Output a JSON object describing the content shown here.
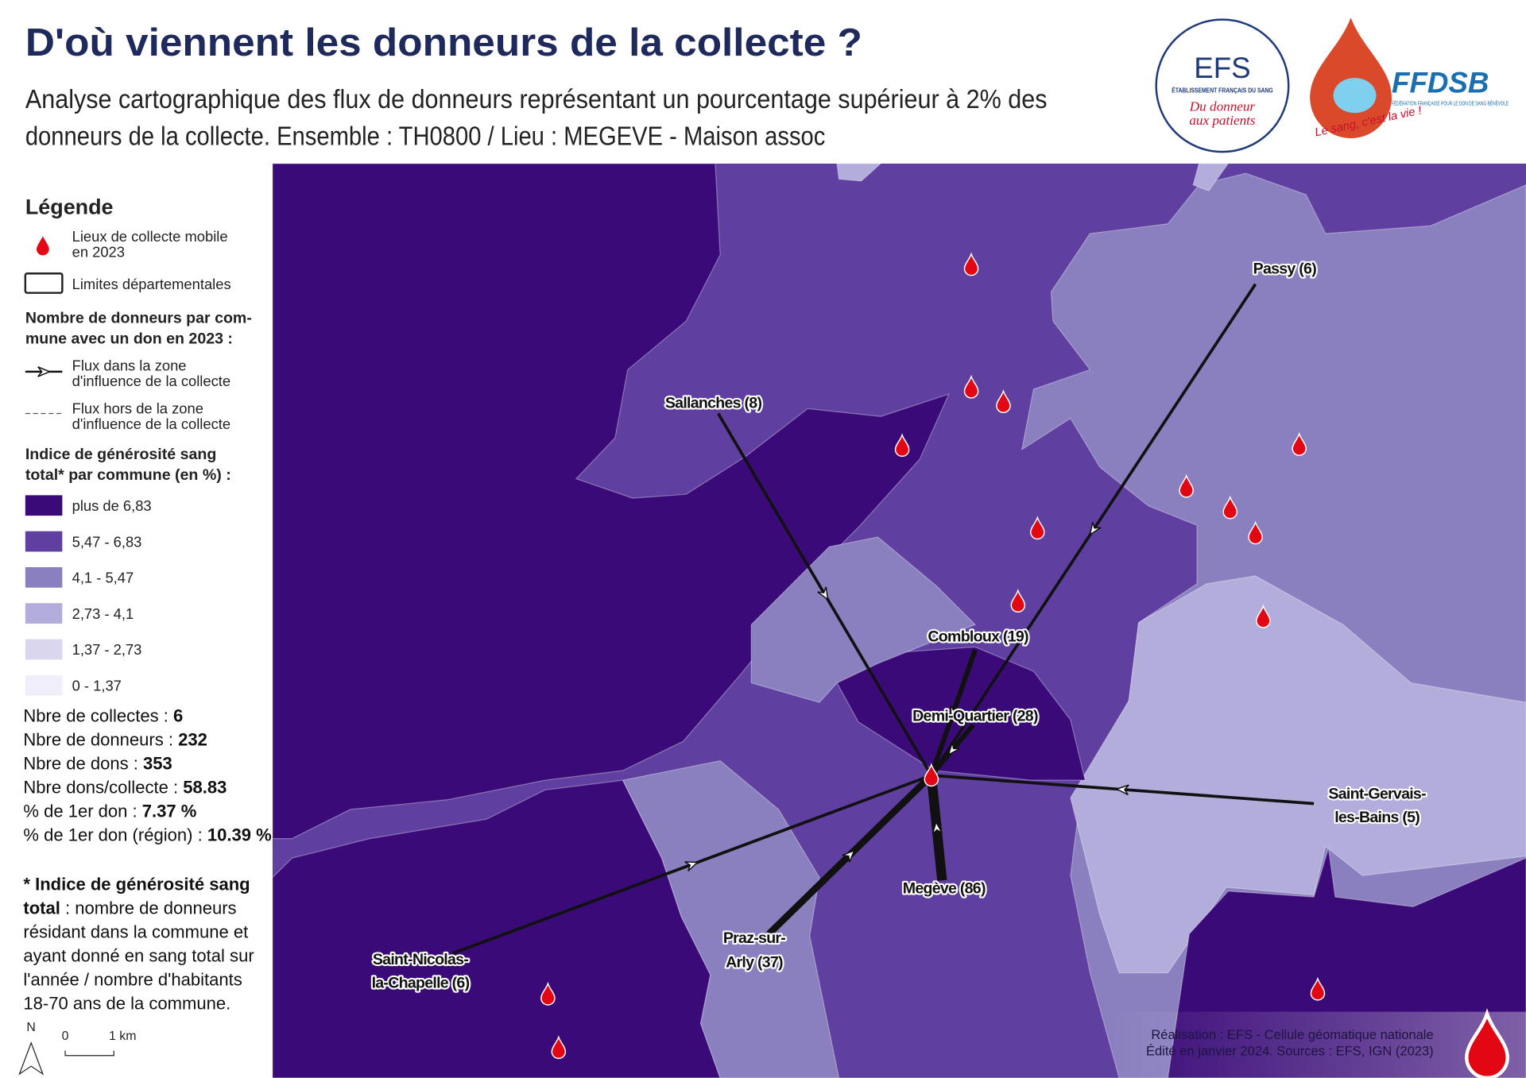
{
  "header": {
    "title": "D'où viennent les donneurs de la collecte ?",
    "subtitle_lines": [
      "Analyse cartographique des flux de donneurs représentant un pourcentage supérieur à 2% des",
      "donneurs de la collecte. Ensemble : TH0800 / Lieu : MEGEVE - Maison assoc"
    ]
  },
  "logos": {
    "efs": {
      "name": "EFS",
      "full_name": "ÉTABLISSEMENT FRANÇAIS DU SANG",
      "slogan_lines": [
        "Du donneur",
        "aux patients"
      ]
    },
    "ffdsb": {
      "name": "FFDSB",
      "full_name": "FÉDÉRATION FRANÇAISE POUR LE DON DE SANG BÉNÉVOLE",
      "slogan": "Le sang, c'est la vie !"
    }
  },
  "legend": {
    "title": "Légende",
    "sites_lines": [
      "Lieux de collecte mobile",
      "en 2023"
    ],
    "departments": "Limites départementales",
    "flows_title_lines": [
      "Nombre de donneurs par com-",
      "mune avec un don en 2023 :"
    ],
    "flow_inside_lines": [
      "Flux dans la zone",
      "d'influence de la collecte"
    ],
    "flow_outside_lines": [
      "Flux hors de la zone",
      "d'influence de la collecte"
    ],
    "index_title_lines": [
      "Indice de générosité sang",
      "total* par commune (en %) :"
    ],
    "classes": [
      {
        "label": "plus de 6,83",
        "color": "#3a0b78"
      },
      {
        "label": "5,47 - 6,83",
        "color": "#5f3f9f"
      },
      {
        "label": "4,1 - 5,47",
        "color": "#8a80c0"
      },
      {
        "label": "2,73 - 4,1",
        "color": "#b2addb"
      },
      {
        "label": "1,37 - 2,73",
        "color": "#d9d6ee"
      },
      {
        "label": "0 - 1,37",
        "color": "#f1eefb"
      }
    ]
  },
  "stats": [
    {
      "label": "Nbre de collectes : ",
      "value": "6"
    },
    {
      "label": "Nbre de donneurs : ",
      "value": "232"
    },
    {
      "label": "Nbre de dons : ",
      "value": "353"
    },
    {
      "label": "Nbre dons/collecte : ",
      "value": "58.83"
    },
    {
      "label": "% de 1er don : ",
      "value": "7.37 %"
    },
    {
      "label": "% de 1er don (région) : ",
      "value": "10.39 %"
    }
  ],
  "footnote": {
    "term_lines": [
      "* Indice de générosité sang",
      "total"
    ],
    "definition_lines": [
      " : nombre de donneurs",
      "résidant dans la commune et",
      "ayant donné en sang total sur",
      "l'année / nombre d'habitants",
      "18-70 ans de la commune."
    ]
  },
  "scale": {
    "north": "N",
    "zero": "0",
    "distance": "1 km"
  },
  "places": [
    {
      "label_lines": [
        "Passy (6)"
      ]
    },
    {
      "label_lines": [
        "Sallanches (8)"
      ]
    },
    {
      "label_lines": [
        "Combloux (19)"
      ]
    },
    {
      "label_lines": [
        "Demi-Quartier (28)"
      ]
    },
    {
      "label_lines": [
        "Saint-Gervais-",
        "les-Bains (5)"
      ]
    },
    {
      "label_lines": [
        "Megève (86)"
      ]
    },
    {
      "label_lines": [
        "Praz-sur-",
        "Arly (37)"
      ]
    },
    {
      "label_lines": [
        "Saint-Nicolas-",
        "la-Chapelle (6)"
      ]
    }
  ],
  "credits": [
    "Réalisation : EFS - Cellule géomatique nationale",
    "Édité en janvier 2024. Sources : EFS, IGN (2023)"
  ]
}
